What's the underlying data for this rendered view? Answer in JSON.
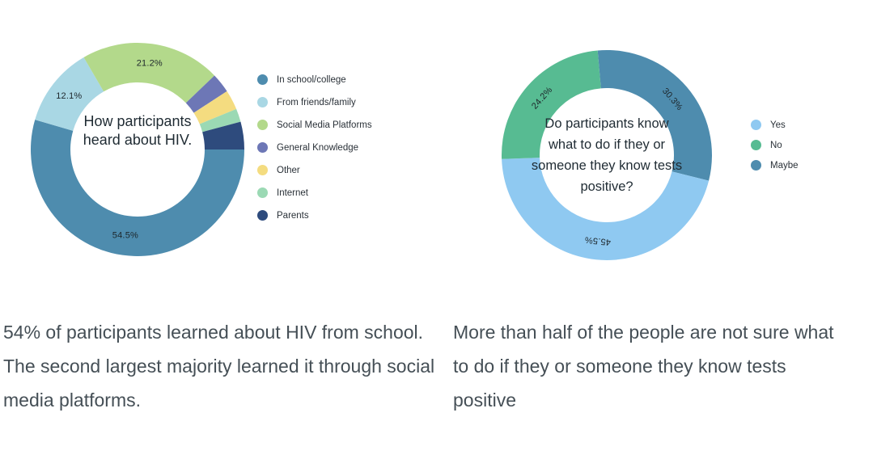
{
  "page": {
    "background": "#ffffff"
  },
  "charts": [
    {
      "name": "how-heard-about-hiv",
      "center_title": "How participants heard about HIV.",
      "legend": [
        {
          "label": "In school/college",
          "color": "#4E8CAE"
        },
        {
          "label": "From friends/family",
          "color": "#A9D7E4"
        },
        {
          "label": "Social Media Platforms",
          "color": "#B3D98B"
        },
        {
          "label": "General Knowledge",
          "color": "#6D77B6"
        },
        {
          "label": "Other",
          "color": "#F4DC80"
        },
        {
          "label": "Internet",
          "color": "#9BD9B4"
        },
        {
          "label": "Parents",
          "color": "#2E4B7D"
        }
      ],
      "caption": "54% of participants learned about HIV from school. The second largest majority learned it through social media platforms."
    },
    {
      "name": "know-what-to-do-if-positive",
      "center_title": "Do participants know what to do if they or someone they know tests positive?",
      "legend": [
        {
          "label": "Yes",
          "color": "#8FC9F1"
        },
        {
          "label": "No",
          "color": "#57BB92"
        },
        {
          "label": "Maybe",
          "color": "#4E8CAE"
        }
      ],
      "caption": "More than half of the people are not sure what to do if they or someone they know tests positive"
    }
  ],
  "chart_data": [
    {
      "type": "pie",
      "donut": true,
      "title": "How participants heard about HIV.",
      "start_angle_deg": 90,
      "labels_rotated": false,
      "segments": [
        {
          "label": "In school/college",
          "value": 54.5,
          "pct_label": "54.5%",
          "color": "#4E8CAE"
        },
        {
          "label": "From friends/family",
          "value": 12.1,
          "pct_label": "12.1%",
          "color": "#A9D7E4"
        },
        {
          "label": "Social Media Platforms",
          "value": 21.2,
          "pct_label": "21.2%",
          "color": "#B3D98B"
        },
        {
          "label": "General Knowledge",
          "value": 3.0,
          "pct_label": "",
          "color": "#6D77B6"
        },
        {
          "label": "Other",
          "value": 3.0,
          "pct_label": "",
          "color": "#F4DC80"
        },
        {
          "label": "Internet",
          "value": 2.0,
          "pct_label": "",
          "color": "#9BD9B4"
        },
        {
          "label": "Parents",
          "value": 4.2,
          "pct_label": "",
          "color": "#2E4B7D"
        }
      ]
    },
    {
      "type": "pie",
      "donut": true,
      "title": "Do participants know what to do if they or someone they know tests positive?",
      "start_angle_deg": 355,
      "labels_rotated": true,
      "segments": [
        {
          "label": "Maybe",
          "value": 30.3,
          "pct_label": "30.3%",
          "color": "#4E8CAE"
        },
        {
          "label": "Yes",
          "value": 45.5,
          "pct_label": "45.5%",
          "color": "#8FC9F1"
        },
        {
          "label": "No",
          "value": 24.2,
          "pct_label": "24.2%",
          "color": "#57BB92"
        }
      ]
    }
  ]
}
